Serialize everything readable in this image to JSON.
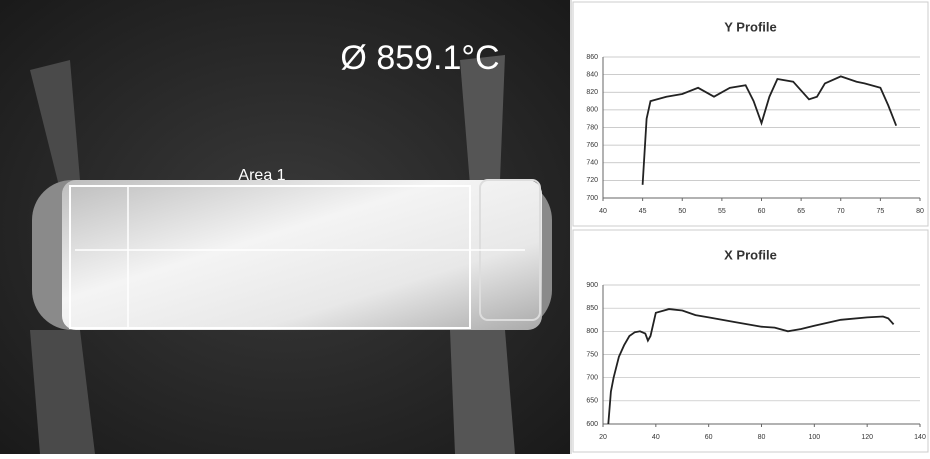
{
  "thermal_image": {
    "reading": "Ø 859.1°C",
    "area_label": "Area 1"
  },
  "chart_data": [
    {
      "type": "line",
      "title": "Y Profile",
      "x": [
        45,
        45.5,
        46,
        48,
        50,
        52,
        54,
        56,
        58,
        59,
        60,
        61,
        62,
        64,
        66,
        67,
        68,
        70,
        72,
        73,
        75,
        76,
        77
      ],
      "series": [
        {
          "name": "Y Profile",
          "color": "#222222",
          "values": [
            715,
            790,
            810,
            815,
            818,
            825,
            815,
            825,
            828,
            810,
            785,
            815,
            835,
            832,
            812,
            815,
            830,
            838,
            832,
            830,
            825,
            805,
            782
          ]
        }
      ],
      "xlim": [
        40,
        80
      ],
      "xticks": [
        40,
        45,
        50,
        55,
        60,
        65,
        70,
        75,
        80
      ],
      "ylim": [
        700,
        860
      ],
      "yticks": [
        700,
        720,
        740,
        760,
        780,
        800,
        820,
        840,
        860
      ],
      "grid": true
    },
    {
      "type": "line",
      "title": "X Profile",
      "x": [
        22,
        23,
        24,
        26,
        28,
        30,
        32,
        34,
        36,
        37,
        38,
        40,
        45,
        50,
        55,
        60,
        70,
        80,
        85,
        90,
        95,
        100,
        110,
        120,
        126,
        128,
        130
      ],
      "series": [
        {
          "name": "X Profile",
          "color": "#222222",
          "values": [
            600,
            670,
            700,
            745,
            770,
            790,
            798,
            800,
            795,
            780,
            790,
            840,
            848,
            845,
            835,
            830,
            820,
            810,
            808,
            800,
            805,
            812,
            825,
            830,
            832,
            828,
            815
          ]
        }
      ],
      "xlim": [
        20,
        140
      ],
      "xticks": [
        20,
        40,
        60,
        80,
        100,
        120,
        140
      ],
      "ylim": [
        600,
        900
      ],
      "yticks": [
        600,
        650,
        700,
        750,
        800,
        850,
        900
      ],
      "grid": true
    }
  ]
}
